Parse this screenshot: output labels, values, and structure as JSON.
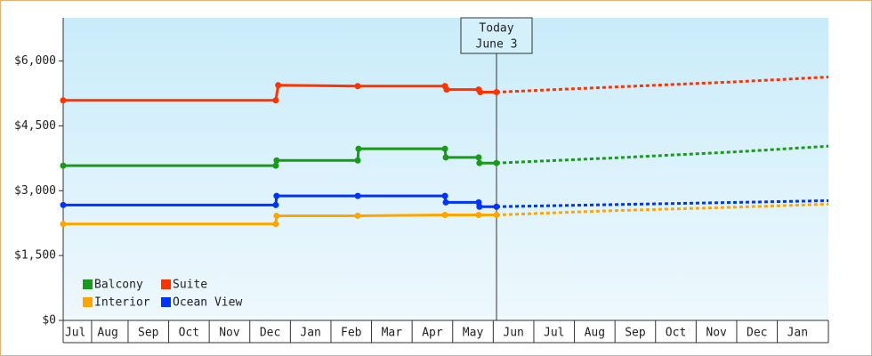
{
  "chart_data": {
    "type": "step-line",
    "xlim": [
      0.4,
      19.26
    ],
    "xticks": [
      {
        "value": 0.7,
        "label": "Jul"
      },
      {
        "value": 1.5,
        "label": "Aug"
      },
      {
        "value": 2.5,
        "label": "Sep"
      },
      {
        "value": 3.5,
        "label": "Oct"
      },
      {
        "value": 4.5,
        "label": "Nov"
      },
      {
        "value": 5.5,
        "label": "Dec"
      },
      {
        "value": 6.5,
        "label": "Jan"
      },
      {
        "value": 7.5,
        "label": "Feb"
      },
      {
        "value": 8.5,
        "label": "Mar"
      },
      {
        "value": 9.5,
        "label": "Apr"
      },
      {
        "value": 10.5,
        "label": "May"
      },
      {
        "value": 11.5,
        "label": "Jun"
      },
      {
        "value": 12.5,
        "label": "Jul"
      },
      {
        "value": 13.5,
        "label": "Aug"
      },
      {
        "value": 14.5,
        "label": "Sep"
      },
      {
        "value": 15.5,
        "label": "Oct"
      },
      {
        "value": 16.5,
        "label": "Nov"
      },
      {
        "value": 17.5,
        "label": "Dec"
      },
      {
        "value": 18.5,
        "label": "Jan"
      }
    ],
    "ylim": [
      0,
      7000
    ],
    "yticks": [
      {
        "value": 0,
        "label": "$0"
      },
      {
        "value": 1500,
        "label": "$1,500"
      },
      {
        "value": 3000,
        "label": "$3,000"
      },
      {
        "value": 4500,
        "label": "$4,500"
      },
      {
        "value": 6000,
        "label": "$6,000"
      }
    ],
    "annotation": {
      "x": 11.08,
      "lines": [
        "Today",
        "June 3"
      ]
    },
    "series": [
      {
        "name": "Balcony",
        "color": "#1a9a1a",
        "x": [
          0.4,
          5.64,
          5.66,
          7.66,
          7.68,
          9.81,
          9.83,
          10.64,
          10.66,
          11.08
        ],
        "values": [
          3580,
          3580,
          3700,
          3700,
          3970,
          3970,
          3770,
          3770,
          3640,
          3640
        ],
        "forecast_x": [
          11.08,
          14,
          17,
          19.26
        ],
        "forecast_values": [
          3640,
          3760,
          3900,
          4030
        ]
      },
      {
        "name": "Suite",
        "color": "#ff3300",
        "x": [
          0.4,
          5.64,
          5.7,
          7.66,
          9.81,
          9.85,
          10.64,
          10.68,
          11.08
        ],
        "values": [
          5090,
          5090,
          5440,
          5420,
          5420,
          5340,
          5340,
          5280,
          5280
        ],
        "forecast_x": [
          11.08,
          14,
          17,
          19.26
        ],
        "forecast_values": [
          5280,
          5400,
          5520,
          5630
        ]
      },
      {
        "name": "Interior",
        "color": "#ffa500",
        "x": [
          0.4,
          5.64,
          5.66,
          7.66,
          9.81,
          10.64,
          11.08
        ],
        "values": [
          2230,
          2230,
          2420,
          2420,
          2440,
          2440,
          2440
        ],
        "forecast_x": [
          11.08,
          14,
          17,
          19.26
        ],
        "forecast_values": [
          2440,
          2540,
          2620,
          2690
        ]
      },
      {
        "name": "Ocean View",
        "color": "#0033ff",
        "x": [
          0.4,
          5.64,
          5.66,
          7.66,
          9.81,
          9.83,
          10.64,
          10.66,
          11.08
        ],
        "values": [
          2670,
          2670,
          2880,
          2880,
          2880,
          2730,
          2730,
          2630,
          2630
        ],
        "forecast_x": [
          11.08,
          14,
          17,
          19.26
        ],
        "forecast_values": [
          2630,
          2680,
          2730,
          2770
        ]
      }
    ]
  }
}
